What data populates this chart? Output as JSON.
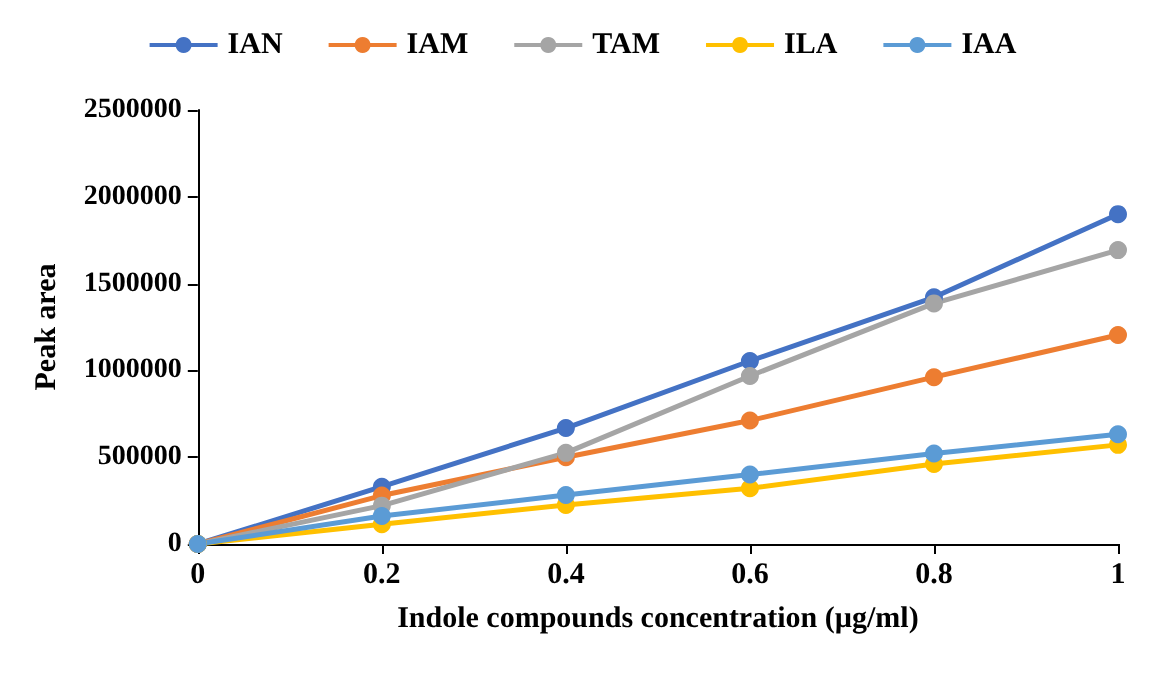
{
  "chart_data": {
    "type": "line",
    "xlabel": "Indole compounds concentration (µg/ml)",
    "ylabel": "Peak area",
    "x": [
      0,
      0.2,
      0.4,
      0.6,
      0.8,
      1
    ],
    "series": [
      {
        "name": "IAN",
        "color": "#4472c4",
        "values": [
          0,
          330000,
          668000,
          1054000,
          1421000,
          1900000
        ]
      },
      {
        "name": "IAM",
        "color": "#ed7d31",
        "values": [
          0,
          279000,
          500000,
          711000,
          961000,
          1204000
        ]
      },
      {
        "name": "TAM",
        "color": "#a5a5a5",
        "values": [
          0,
          221000,
          525000,
          968000,
          1386000,
          1693000
        ]
      },
      {
        "name": "ILA",
        "color": "#ffc000",
        "values": [
          0,
          114000,
          225000,
          321000,
          461000,
          571000
        ]
      },
      {
        "name": "IAA",
        "color": "#5b9bd5",
        "values": [
          0,
          161000,
          282000,
          400000,
          521000,
          632000
        ]
      }
    ],
    "xlim": [
      0,
      1
    ],
    "xticks": [
      0,
      0.2,
      0.4,
      0.6,
      0.8,
      1
    ],
    "ylim": [
      0,
      2500000
    ],
    "yticks": [
      0,
      500000,
      1000000,
      1500000,
      2000000,
      2500000
    ],
    "grid": false,
    "legend": "top",
    "marker": "circle",
    "line_style": "solid"
  }
}
